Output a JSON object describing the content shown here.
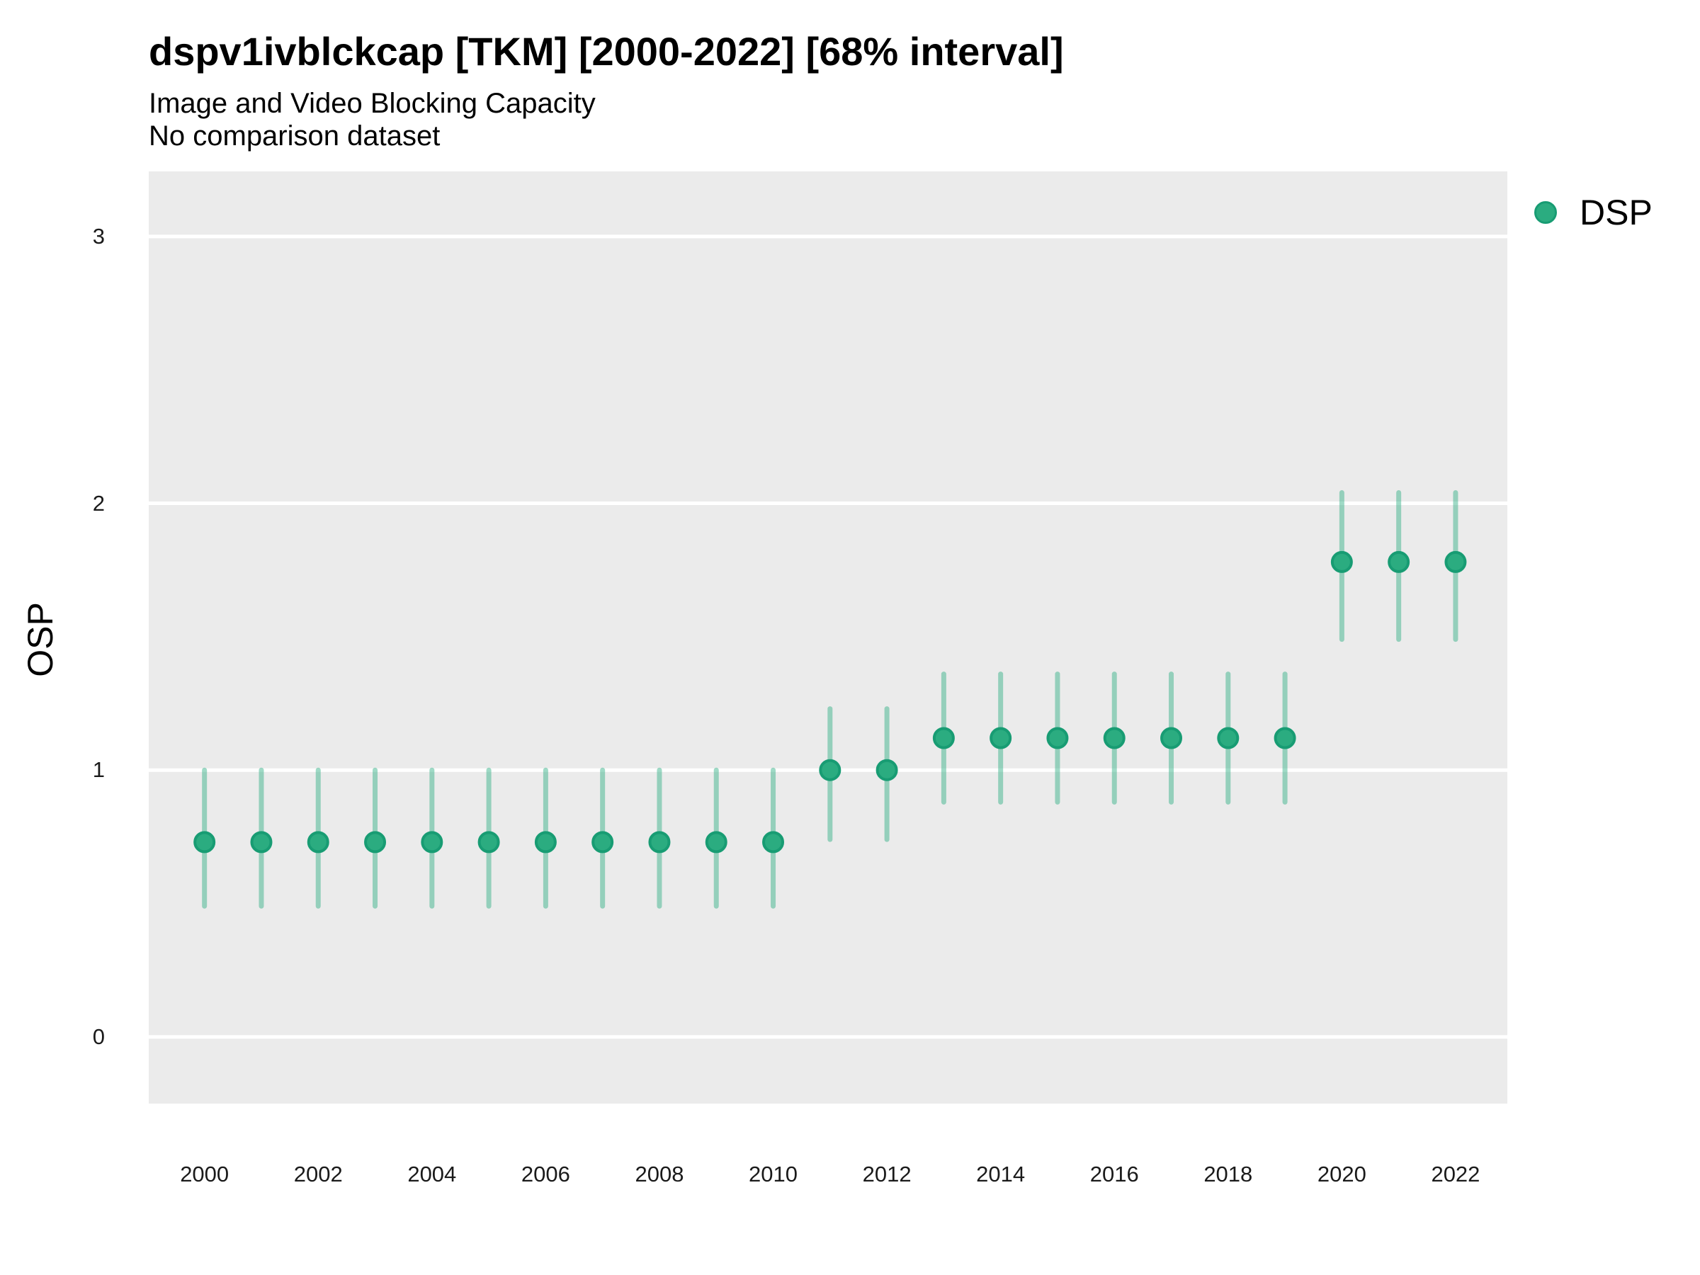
{
  "header": {
    "title": "dspv1ivblckcap [TKM] [2000-2022] [68% interval]",
    "subtitle": "Image and Video Blocking Capacity",
    "note": "No comparison dataset"
  },
  "legend": {
    "position": "right",
    "items": [
      {
        "label": "DSP",
        "swatch": "circle-icon",
        "color": "#2bac80"
      }
    ]
  },
  "chart_data": {
    "type": "pointrange",
    "title": "dspv1ivblckcap [TKM] [2000-2022] [68% interval]",
    "subtitle": "Image and Video Blocking Capacity",
    "note": "No comparison dataset",
    "interval_label": "68% interval",
    "xlabel": "",
    "ylabel": "OSP",
    "xlim": [
      1999.02,
      2022.91
    ],
    "ylim": [
      -0.25,
      3.244
    ],
    "x_ticks": [
      2000,
      2002,
      2004,
      2006,
      2008,
      2010,
      2012,
      2014,
      2016,
      2018,
      2020,
      2022
    ],
    "y_ticks": [
      0,
      1,
      2,
      3
    ],
    "grid": "horizontal-major-only",
    "gridline_color": "#ffffff",
    "panel_background": "#ebebeb",
    "legend_position": "right",
    "series": [
      {
        "name": "DSP",
        "color": "#2bac80",
        "stroke_color": "#189c73",
        "range_alpha": 0.45,
        "points": [
          {
            "year": 2000,
            "value": 0.73,
            "lo": 0.49,
            "hi": 1.0
          },
          {
            "year": 2001,
            "value": 0.73,
            "lo": 0.49,
            "hi": 1.0
          },
          {
            "year": 2002,
            "value": 0.73,
            "lo": 0.49,
            "hi": 1.0
          },
          {
            "year": 2003,
            "value": 0.73,
            "lo": 0.49,
            "hi": 1.0
          },
          {
            "year": 2004,
            "value": 0.73,
            "lo": 0.49,
            "hi": 1.0
          },
          {
            "year": 2005,
            "value": 0.73,
            "lo": 0.49,
            "hi": 1.0
          },
          {
            "year": 2006,
            "value": 0.73,
            "lo": 0.49,
            "hi": 1.0
          },
          {
            "year": 2007,
            "value": 0.73,
            "lo": 0.49,
            "hi": 1.0
          },
          {
            "year": 2008,
            "value": 0.73,
            "lo": 0.49,
            "hi": 1.0
          },
          {
            "year": 2009,
            "value": 0.73,
            "lo": 0.49,
            "hi": 1.0
          },
          {
            "year": 2010,
            "value": 0.73,
            "lo": 0.49,
            "hi": 1.0
          },
          {
            "year": 2011,
            "value": 1.0,
            "lo": 0.74,
            "hi": 1.23
          },
          {
            "year": 2012,
            "value": 1.0,
            "lo": 0.74,
            "hi": 1.23
          },
          {
            "year": 2013,
            "value": 1.12,
            "lo": 0.88,
            "hi": 1.36
          },
          {
            "year": 2014,
            "value": 1.12,
            "lo": 0.88,
            "hi": 1.36
          },
          {
            "year": 2015,
            "value": 1.12,
            "lo": 0.88,
            "hi": 1.36
          },
          {
            "year": 2016,
            "value": 1.12,
            "lo": 0.88,
            "hi": 1.36
          },
          {
            "year": 2017,
            "value": 1.12,
            "lo": 0.88,
            "hi": 1.36
          },
          {
            "year": 2018,
            "value": 1.12,
            "lo": 0.88,
            "hi": 1.36
          },
          {
            "year": 2019,
            "value": 1.12,
            "lo": 0.88,
            "hi": 1.36
          },
          {
            "year": 2020,
            "value": 1.78,
            "lo": 1.49,
            "hi": 2.04
          },
          {
            "year": 2021,
            "value": 1.78,
            "lo": 1.49,
            "hi": 2.04
          },
          {
            "year": 2022,
            "value": 1.78,
            "lo": 1.49,
            "hi": 2.04
          }
        ]
      }
    ]
  }
}
